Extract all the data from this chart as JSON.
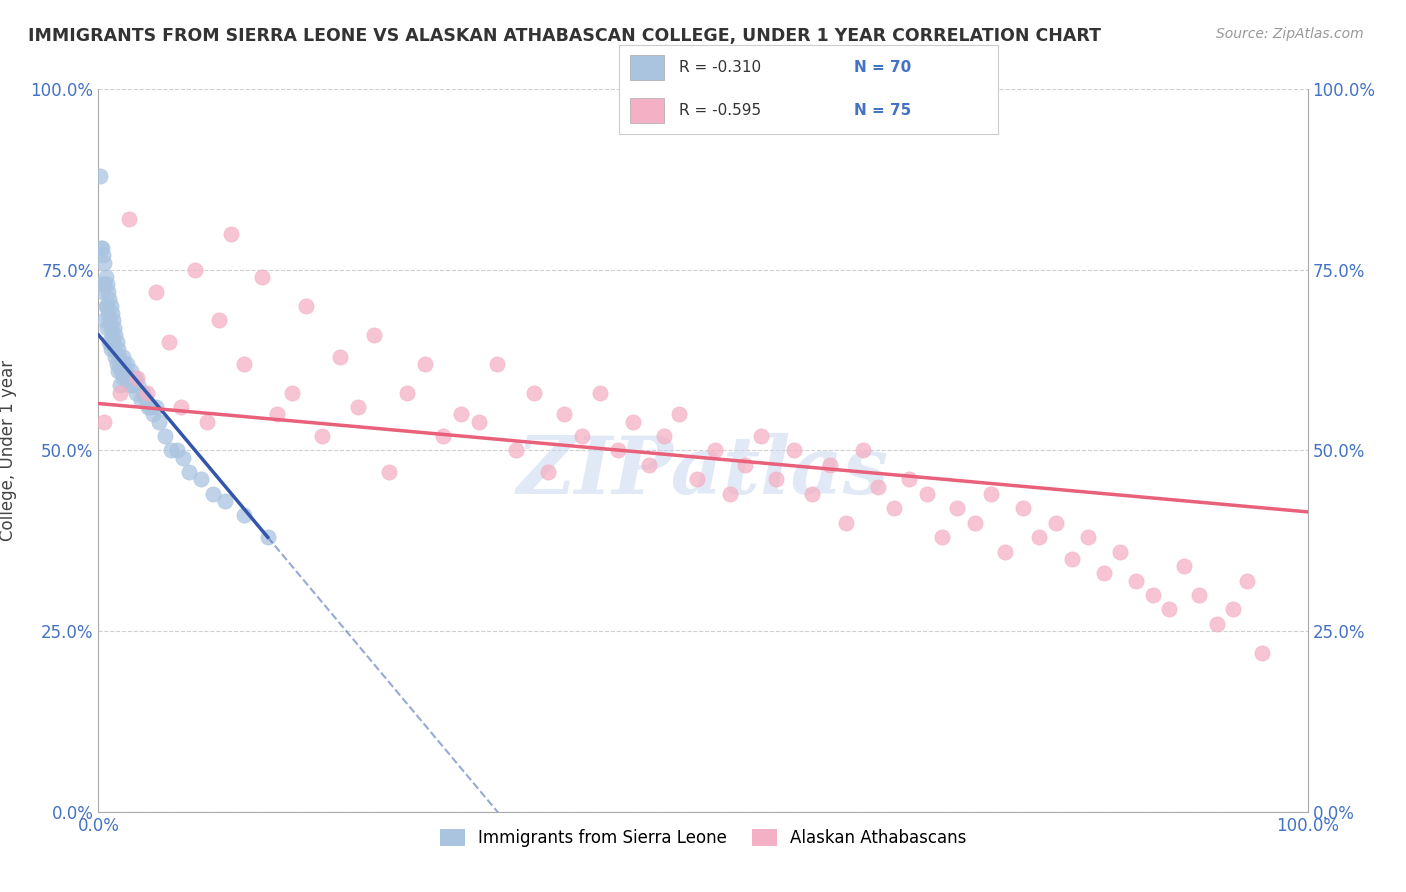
{
  "title": "IMMIGRANTS FROM SIERRA LEONE VS ALASKAN ATHABASCAN COLLEGE, UNDER 1 YEAR CORRELATION CHART",
  "source_text": "Source: ZipAtlas.com",
  "ylabel": "College, Under 1 year",
  "xlim": [
    0.0,
    1.0
  ],
  "ylim": [
    0.0,
    1.0
  ],
  "x_tick_labels": [
    "0.0%",
    "100.0%"
  ],
  "y_tick_labels": [
    "0.0%",
    "25.0%",
    "50.0%",
    "75.0%",
    "100.0%"
  ],
  "y_tick_positions": [
    0.0,
    0.25,
    0.5,
    0.75,
    1.0
  ],
  "blue_color": "#aac4e0",
  "pink_color": "#f4b0c4",
  "blue_line_color": "#3355aa",
  "pink_line_color": "#e8607a",
  "legend_blue_label": "Immigrants from Sierra Leone",
  "legend_pink_label": "Alaskan Athabascans",
  "r_blue": -0.31,
  "n_blue": 70,
  "r_pink": -0.595,
  "n_pink": 75,
  "watermark": "ZIPatlas",
  "background_color": "#ffffff",
  "grid_color": "#d0d0d0",
  "blue_scatter_x": [
    0.001,
    0.002,
    0.003,
    0.003,
    0.004,
    0.004,
    0.005,
    0.005,
    0.005,
    0.006,
    0.006,
    0.007,
    0.007,
    0.007,
    0.008,
    0.008,
    0.009,
    0.009,
    0.009,
    0.01,
    0.01,
    0.01,
    0.011,
    0.011,
    0.012,
    0.012,
    0.013,
    0.013,
    0.014,
    0.014,
    0.015,
    0.015,
    0.016,
    0.016,
    0.017,
    0.018,
    0.018,
    0.019,
    0.02,
    0.02,
    0.021,
    0.022,
    0.023,
    0.024,
    0.025,
    0.026,
    0.027,
    0.028,
    0.029,
    0.03,
    0.031,
    0.033,
    0.035,
    0.037,
    0.039,
    0.041,
    0.043,
    0.045,
    0.048,
    0.05,
    0.055,
    0.06,
    0.065,
    0.07,
    0.075,
    0.085,
    0.095,
    0.105,
    0.12,
    0.14
  ],
  "blue_scatter_y": [
    0.88,
    0.78,
    0.78,
    0.73,
    0.77,
    0.72,
    0.76,
    0.73,
    0.68,
    0.74,
    0.7,
    0.73,
    0.7,
    0.67,
    0.72,
    0.69,
    0.71,
    0.68,
    0.65,
    0.7,
    0.67,
    0.64,
    0.69,
    0.66,
    0.68,
    0.65,
    0.67,
    0.64,
    0.66,
    0.63,
    0.65,
    0.62,
    0.64,
    0.61,
    0.63,
    0.62,
    0.59,
    0.61,
    0.63,
    0.6,
    0.62,
    0.61,
    0.6,
    0.62,
    0.6,
    0.59,
    0.61,
    0.6,
    0.59,
    0.6,
    0.58,
    0.59,
    0.57,
    0.58,
    0.57,
    0.56,
    0.56,
    0.55,
    0.56,
    0.54,
    0.52,
    0.5,
    0.5,
    0.49,
    0.47,
    0.46,
    0.44,
    0.43,
    0.41,
    0.38
  ],
  "pink_scatter_x": [
    0.005,
    0.018,
    0.025,
    0.032,
    0.04,
    0.048,
    0.058,
    0.068,
    0.08,
    0.09,
    0.1,
    0.11,
    0.12,
    0.135,
    0.148,
    0.16,
    0.172,
    0.185,
    0.2,
    0.215,
    0.228,
    0.24,
    0.255,
    0.27,
    0.285,
    0.3,
    0.315,
    0.33,
    0.345,
    0.36,
    0.372,
    0.385,
    0.4,
    0.415,
    0.43,
    0.442,
    0.455,
    0.468,
    0.48,
    0.495,
    0.51,
    0.522,
    0.535,
    0.548,
    0.56,
    0.575,
    0.59,
    0.605,
    0.618,
    0.632,
    0.645,
    0.658,
    0.67,
    0.685,
    0.698,
    0.71,
    0.725,
    0.738,
    0.75,
    0.765,
    0.778,
    0.792,
    0.805,
    0.818,
    0.832,
    0.845,
    0.858,
    0.872,
    0.885,
    0.898,
    0.91,
    0.925,
    0.938,
    0.95,
    0.962
  ],
  "pink_scatter_y": [
    0.54,
    0.58,
    0.82,
    0.6,
    0.58,
    0.72,
    0.65,
    0.56,
    0.75,
    0.54,
    0.68,
    0.8,
    0.62,
    0.74,
    0.55,
    0.58,
    0.7,
    0.52,
    0.63,
    0.56,
    0.66,
    0.47,
    0.58,
    0.62,
    0.52,
    0.55,
    0.54,
    0.62,
    0.5,
    0.58,
    0.47,
    0.55,
    0.52,
    0.58,
    0.5,
    0.54,
    0.48,
    0.52,
    0.55,
    0.46,
    0.5,
    0.44,
    0.48,
    0.52,
    0.46,
    0.5,
    0.44,
    0.48,
    0.4,
    0.5,
    0.45,
    0.42,
    0.46,
    0.44,
    0.38,
    0.42,
    0.4,
    0.44,
    0.36,
    0.42,
    0.38,
    0.4,
    0.35,
    0.38,
    0.33,
    0.36,
    0.32,
    0.3,
    0.28,
    0.34,
    0.3,
    0.26,
    0.28,
    0.32,
    0.22
  ],
  "blue_trend_x0": 0.0,
  "blue_trend_y0": 0.66,
  "blue_trend_x1": 0.14,
  "blue_trend_y1": 0.38,
  "pink_trend_x0": 0.0,
  "pink_trend_y0": 0.565,
  "pink_trend_x1": 1.0,
  "pink_trend_y1": 0.415
}
